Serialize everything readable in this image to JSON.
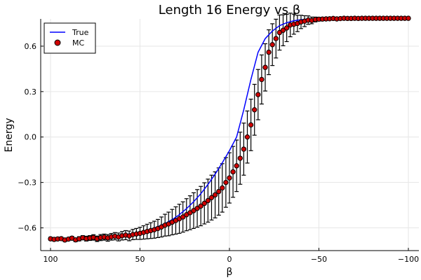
{
  "chart_data": {
    "type": "line",
    "title": "Length 16 Energy vs β",
    "xlabel": "β",
    "ylabel": "Energy",
    "x_reversed": true,
    "xlim": [
      100,
      -100
    ],
    "ylim": [
      -0.75,
      0.78
    ],
    "xticks": [
      100,
      50,
      0,
      -50,
      -100
    ],
    "xtick_labels": [
      "100",
      "50",
      "0",
      "−50",
      "−100"
    ],
    "yticks": [
      -0.6,
      -0.3,
      0.0,
      0.3,
      0.6
    ],
    "ytick_labels": [
      "−0.6",
      "−0.3",
      "0.0",
      "0.3",
      "0.6"
    ],
    "grid": true,
    "legend_position": "top-left",
    "colors": {
      "true_line": "#0000ff",
      "mc_marker": "#d00000",
      "errorbar": "#000000",
      "grid": "#e6e6e6"
    },
    "series": [
      {
        "name": "True",
        "kind": "line",
        "x": [
          100,
          96,
          92,
          88,
          84,
          80,
          76,
          72,
          68,
          64,
          60,
          56,
          52,
          48,
          44,
          40,
          36,
          32,
          28,
          24,
          20,
          16,
          12,
          8,
          4,
          0,
          -4,
          -8,
          -12,
          -16,
          -20,
          -24,
          -28,
          -32,
          -36,
          -40,
          -44,
          -48,
          -52,
          -56,
          -60,
          -64,
          -68,
          -72,
          -76,
          -80,
          -84,
          -88,
          -92,
          -96,
          -100
        ],
        "y": [
          -0.676,
          -0.675,
          -0.674,
          -0.672,
          -0.67,
          -0.668,
          -0.665,
          -0.662,
          -0.658,
          -0.653,
          -0.647,
          -0.64,
          -0.632,
          -0.622,
          -0.609,
          -0.592,
          -0.571,
          -0.545,
          -0.513,
          -0.473,
          -0.427,
          -0.374,
          -0.313,
          -0.245,
          -0.17,
          -0.09,
          0.0,
          0.18,
          0.38,
          0.56,
          0.65,
          0.7,
          0.735,
          0.755,
          0.768,
          0.775,
          0.778,
          0.78,
          0.782,
          0.783,
          0.783,
          0.784,
          0.784,
          0.784,
          0.784,
          0.784,
          0.784,
          0.784,
          0.784,
          0.784,
          0.784
        ]
      },
      {
        "name": "MC",
        "kind": "scatter",
        "x": [
          100,
          98,
          96,
          94,
          92,
          90,
          88,
          86,
          84,
          82,
          80,
          78,
          76,
          74,
          72,
          70,
          68,
          66,
          64,
          62,
          60,
          58,
          56,
          54,
          52,
          50,
          48,
          46,
          44,
          42,
          40,
          38,
          36,
          34,
          32,
          30,
          28,
          26,
          24,
          22,
          20,
          18,
          16,
          14,
          12,
          10,
          8,
          6,
          4,
          2,
          0,
          -2,
          -4,
          -6,
          -8,
          -10,
          -12,
          -14,
          -16,
          -18,
          -20,
          -22,
          -24,
          -26,
          -28,
          -30,
          -32,
          -34,
          -36,
          -38,
          -40,
          -42,
          -44,
          -46,
          -48,
          -50,
          -52,
          -54,
          -56,
          -58,
          -60,
          -62,
          -64,
          -66,
          -68,
          -70,
          -72,
          -74,
          -76,
          -78,
          -80,
          -82,
          -84,
          -86,
          -88,
          -90,
          -92,
          -94,
          -96,
          -98,
          -100
        ],
        "y": [
          -0.672,
          -0.676,
          -0.673,
          -0.671,
          -0.68,
          -0.674,
          -0.668,
          -0.679,
          -0.672,
          -0.665,
          -0.671,
          -0.667,
          -0.663,
          -0.672,
          -0.664,
          -0.661,
          -0.666,
          -0.659,
          -0.655,
          -0.66,
          -0.652,
          -0.648,
          -0.653,
          -0.644,
          -0.64,
          -0.636,
          -0.63,
          -0.624,
          -0.618,
          -0.612,
          -0.604,
          -0.594,
          -0.582,
          -0.574,
          -0.562,
          -0.551,
          -0.54,
          -0.528,
          -0.513,
          -0.5,
          -0.486,
          -0.471,
          -0.456,
          -0.438,
          -0.42,
          -0.4,
          -0.382,
          -0.36,
          -0.336,
          -0.3,
          -0.27,
          -0.23,
          -0.19,
          -0.14,
          -0.08,
          0.0,
          0.08,
          0.18,
          0.28,
          0.38,
          0.46,
          0.56,
          0.61,
          0.65,
          0.69,
          0.705,
          0.72,
          0.74,
          0.745,
          0.75,
          0.76,
          0.765,
          0.772,
          0.77,
          0.776,
          0.778,
          0.779,
          0.78,
          0.781,
          0.783,
          0.78,
          0.782,
          0.784,
          0.783,
          0.783,
          0.784,
          0.783,
          0.784,
          0.784,
          0.784,
          0.784,
          0.784,
          0.784,
          0.784,
          0.784,
          0.784,
          0.784,
          0.784,
          0.784,
          0.784,
          0.784
        ],
        "yerr": [
          0.01,
          0.01,
          0.01,
          0.01,
          0.01,
          0.01,
          0.012,
          0.012,
          0.014,
          0.014,
          0.016,
          0.016,
          0.018,
          0.018,
          0.02,
          0.02,
          0.022,
          0.022,
          0.024,
          0.026,
          0.028,
          0.03,
          0.032,
          0.034,
          0.036,
          0.04,
          0.044,
          0.048,
          0.052,
          0.056,
          0.06,
          0.066,
          0.072,
          0.078,
          0.084,
          0.09,
          0.096,
          0.1,
          0.106,
          0.112,
          0.118,
          0.124,
          0.13,
          0.136,
          0.142,
          0.148,
          0.152,
          0.156,
          0.16,
          0.164,
          0.166,
          0.168,
          0.17,
          0.172,
          0.172,
          0.172,
          0.17,
          0.168,
          0.166,
          0.162,
          0.156,
          0.148,
          0.138,
          0.128,
          0.116,
          0.102,
          0.09,
          0.078,
          0.066,
          0.054,
          0.044,
          0.036,
          0.028,
          0.022,
          0.016,
          0.012,
          0.01,
          0.008,
          0.006,
          0.005,
          0.004,
          0.004,
          0.003,
          0.003,
          0.002,
          0.002,
          0.002,
          0.002,
          0.002,
          0.002,
          0.002,
          0.002,
          0.002,
          0.002,
          0.002,
          0.002,
          0.002,
          0.002,
          0.002,
          0.002,
          0.002
        ]
      }
    ]
  }
}
